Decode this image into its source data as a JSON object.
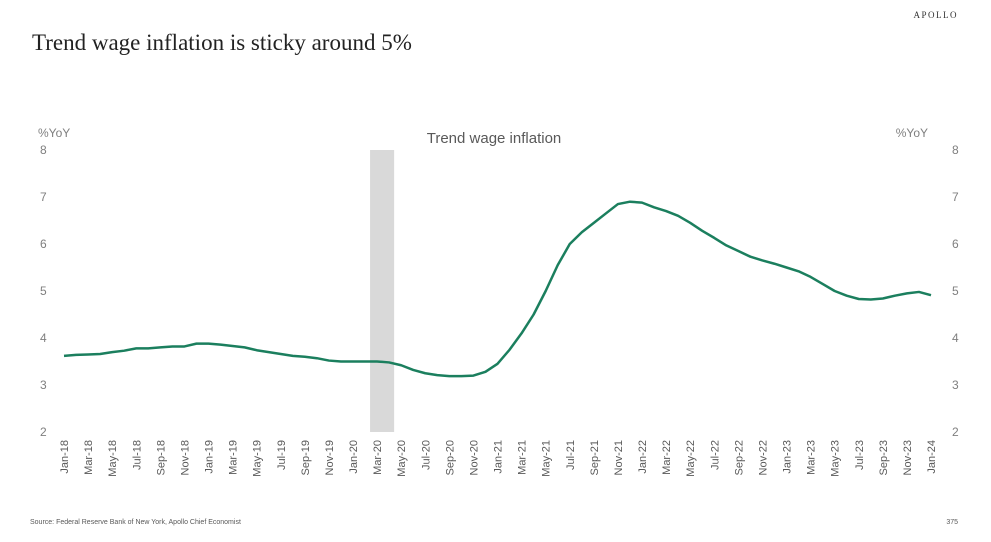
{
  "chart_data": {
    "type": "line",
    "title": "Trend wage inflation is sticky around 5%",
    "logo": "APOLLO",
    "label": "Trend wage inflation",
    "ylabel": "%YoY",
    "y2label": "%YoY",
    "source": "Source: Federal Reserve Bank of New York, Apollo Chief Economist",
    "page_number": "375",
    "categories": [
      "Jan-18",
      null,
      "Mar-18",
      null,
      "May-18",
      null,
      "Jul-18",
      null,
      "Sep-18",
      null,
      "Nov-18",
      null,
      "Jan-19",
      null,
      "Mar-19",
      null,
      "May-19",
      null,
      "Jul-19",
      null,
      "Sep-19",
      null,
      "Nov-19",
      null,
      "Jan-20",
      null,
      "Mar-20",
      null,
      "May-20",
      null,
      "Jul-20",
      null,
      "Sep-20",
      null,
      "Nov-20",
      null,
      "Jan-21",
      null,
      "Mar-21",
      null,
      "May-21",
      null,
      "Jul-21",
      null,
      "Sep-21",
      null,
      "Nov-21",
      null,
      "Jan-22",
      null,
      "Mar-22",
      null,
      "May-22",
      null,
      "Jul-22",
      null,
      "Sep-22",
      null,
      "Nov-22",
      null,
      "Jan-23",
      null,
      "Mar-23",
      null,
      "May-23",
      null,
      "Jul-23",
      null,
      "Sep-23",
      null,
      "Nov-23",
      null,
      "Jan-24"
    ],
    "series": [
      {
        "name": "Trend wage inflation",
        "color": "#1b7f5e",
        "values": [
          3.62,
          3.64,
          3.65,
          3.66,
          3.7,
          3.73,
          3.78,
          3.78,
          3.8,
          3.82,
          3.82,
          3.88,
          3.88,
          3.86,
          3.83,
          3.8,
          3.74,
          3.7,
          3.66,
          3.62,
          3.6,
          3.57,
          3.52,
          3.5,
          3.5,
          3.5,
          3.5,
          3.48,
          3.42,
          3.32,
          3.25,
          3.21,
          3.19,
          3.19,
          3.2,
          3.28,
          3.45,
          3.75,
          4.1,
          4.5,
          5.0,
          5.55,
          6.0,
          6.25,
          6.45,
          6.65,
          6.85,
          6.9,
          6.88,
          6.78,
          6.7,
          6.6,
          6.45,
          6.28,
          6.13,
          5.97,
          5.85,
          5.73,
          5.65,
          5.58,
          5.5,
          5.42,
          5.3,
          5.15,
          5.0,
          4.9,
          4.83,
          4.82,
          4.84,
          4.9,
          4.95,
          4.98,
          4.91
        ]
      }
    ],
    "shaded_range": [
      26,
      27
    ],
    "shade_color": "#d9d9d9",
    "ylim": [
      2,
      8
    ],
    "yticks": [
      2,
      3,
      4,
      5,
      6,
      7,
      8
    ],
    "y2lim": [
      2,
      8
    ],
    "y2ticks": [
      2,
      3,
      4,
      5,
      6,
      7,
      8
    ],
    "grid": false
  }
}
